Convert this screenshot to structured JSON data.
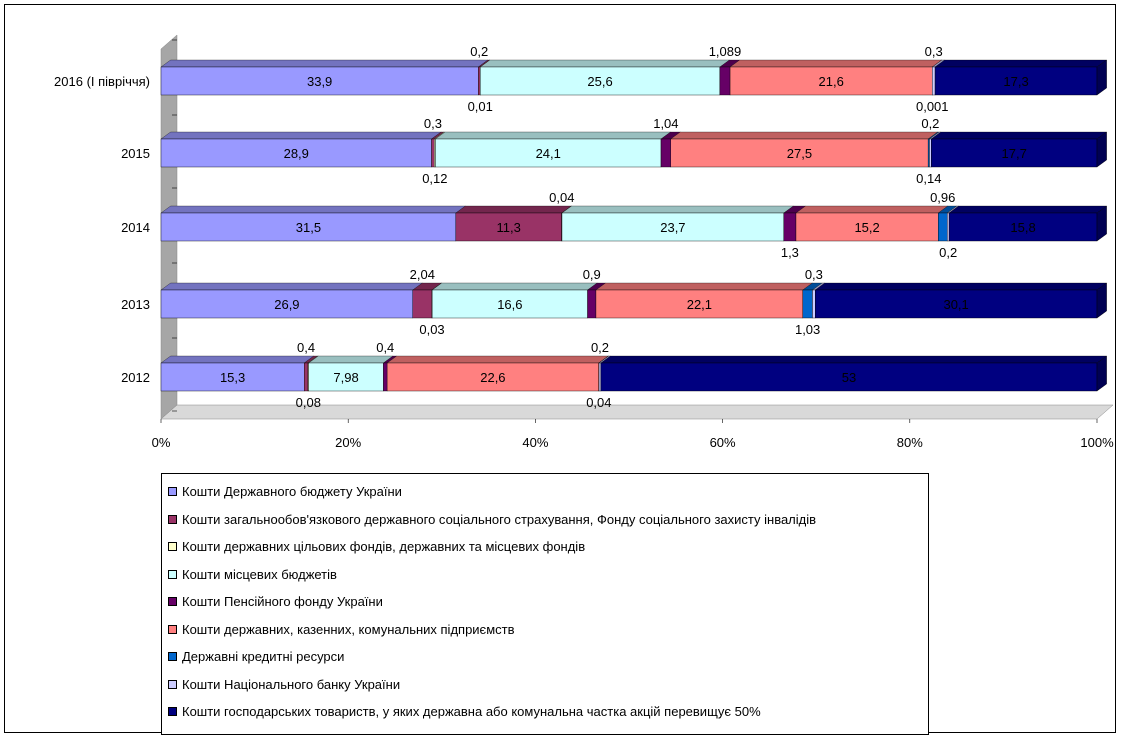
{
  "chart_data": {
    "type": "bar",
    "orientation": "horizontal",
    "stacked": "percent",
    "three_d": true,
    "categories": [
      "2016 (І півріччя)",
      "2015",
      "2014",
      "2013",
      "2012"
    ],
    "x_ticks": [
      "0%",
      "20%",
      "40%",
      "60%",
      "80%",
      "100%"
    ],
    "xlim": [
      0,
      100
    ],
    "legend_position": "bottom",
    "series": [
      {
        "name": "Кошти Державного бюджету України",
        "color": "#9999ff",
        "values": [
          33.9,
          28.9,
          31.5,
          26.9,
          15.3
        ],
        "labels": [
          "33,9",
          "28,9",
          "31,5",
          "26,9",
          "15,3"
        ]
      },
      {
        "name": "Кошти загальнообов'язкового державного соціального страхування, Фонду соціального захисту інвалідів",
        "color": "#993366",
        "values": [
          0.2,
          0.3,
          11.3,
          2.04,
          0.4
        ],
        "labels": [
          "0,2",
          "0,3",
          "11,3",
          "2,04",
          "0,4"
        ]
      },
      {
        "name": "Кошти державних цільових фондів, державних та місцевих фондів",
        "color": "#ffffcc",
        "values": [
          0.01,
          0.12,
          0.04,
          0.03,
          0.08
        ],
        "labels": [
          "0,01",
          "0,12",
          "0,04",
          "0,03",
          "0,08"
        ]
      },
      {
        "name": "Кошти місцевих бюджетів",
        "color": "#ccffff",
        "values": [
          25.6,
          24.1,
          23.7,
          16.6,
          7.98
        ],
        "labels": [
          "25,6",
          "24,1",
          "23,7",
          "16,6",
          "7,98"
        ]
      },
      {
        "name": "Кошти Пенсійного фонду України",
        "color": "#660066",
        "values": [
          1.089,
          1.04,
          1.3,
          0.9,
          0.4
        ],
        "labels": [
          "1,089",
          "1,04",
          "1,3",
          "0,9",
          "0,4"
        ]
      },
      {
        "name": "Кошти державних, казенних, комунальних підприємств",
        "color": "#ff8080",
        "values": [
          21.6,
          27.5,
          15.2,
          22.1,
          22.6
        ],
        "labels": [
          "21,6",
          "27,5",
          "15,2",
          "22,1",
          "22,6"
        ]
      },
      {
        "name": "Державні кредитні ресурси",
        "color": "#0066cc",
        "values": [
          0.001,
          0.14,
          0.96,
          1.03,
          0.04
        ],
        "labels": [
          "0,001",
          "0,14",
          "0,96",
          "1,03",
          "0,04"
        ]
      },
      {
        "name": "Кошти Національного банку України",
        "color": "#ccccff",
        "values": [
          0.3,
          0.2,
          0.2,
          0.3,
          0.2
        ],
        "labels": [
          "0,3",
          "0,2",
          "0,2",
          "0,3",
          "0,2"
        ]
      },
      {
        "name": "Кошти господарських товариств, у яких державна або комунальна частка акцій перевищує 50%",
        "color": "#000080",
        "values": [
          17.3,
          17.7,
          15.8,
          30.1,
          53
        ],
        "labels": [
          "17,3",
          "17,7",
          "15,8",
          "30,1",
          "53"
        ]
      }
    ]
  }
}
